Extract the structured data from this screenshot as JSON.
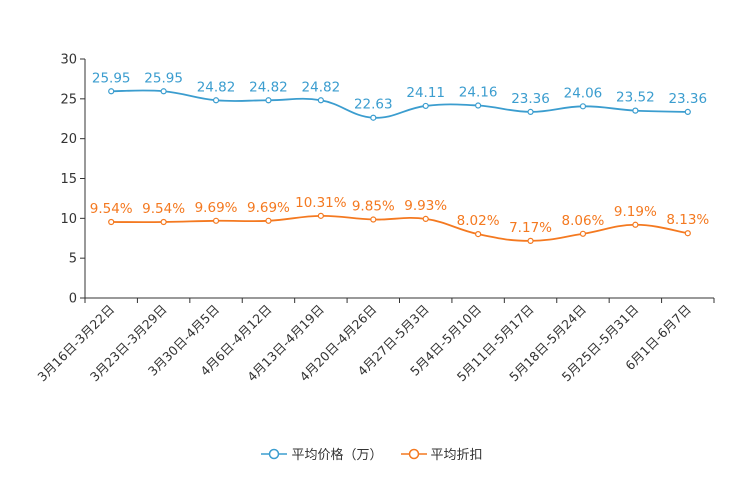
{
  "chart_data": {
    "type": "line",
    "categories": [
      "3月16日-3月22日",
      "3月23日-3月29日",
      "3月30日-4月5日",
      "4月6日-4月12日",
      "4月13日-4月19日",
      "4月20日-4月26日",
      "4月27日-5月3日",
      "5月4日-5月10日",
      "5月11日-5月17日",
      "5月18日-5月24日",
      "5月25日-5月31日",
      "6月1日-6月7日"
    ],
    "ylim": [
      0,
      30
    ],
    "yticks": [
      0,
      5,
      10,
      15,
      20,
      25,
      30
    ],
    "grid": false,
    "legend_position": "bottom-center",
    "series": [
      {
        "name": "平均价格（万）",
        "color": "#3b9dcf",
        "values": [
          25.95,
          25.95,
          24.82,
          24.82,
          24.82,
          22.63,
          24.11,
          24.16,
          23.36,
          24.06,
          23.52,
          23.36
        ],
        "labels": [
          "25.95",
          "25.95",
          "24.82",
          "24.82",
          "24.82",
          "22.63",
          "24.11",
          "24.16",
          "23.36",
          "24.06",
          "23.52",
          "23.36"
        ]
      },
      {
        "name": "平均折扣",
        "color": "#f47920",
        "values": [
          9.54,
          9.54,
          9.69,
          9.69,
          10.31,
          9.85,
          9.93,
          8.02,
          7.17,
          8.06,
          9.19,
          8.13
        ],
        "labels": [
          "9.54%",
          "9.54%",
          "9.69%",
          "9.69%",
          "10.31%",
          "9.85%",
          "9.93%",
          "8.02%",
          "7.17%",
          "8.06%",
          "9.19%",
          "8.13%"
        ]
      }
    ]
  }
}
